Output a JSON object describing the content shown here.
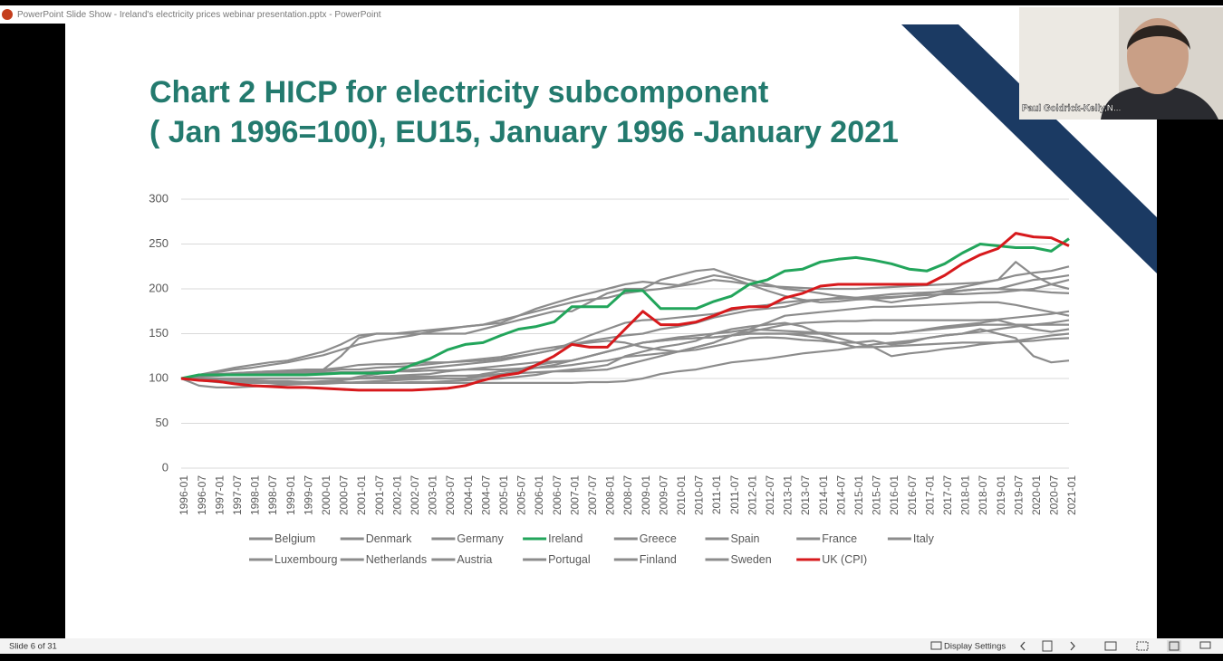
{
  "window_title": "PowerPoint Slide Show  -  Ireland's electricity prices webinar presentation.pptx - PowerPoint",
  "webcam": {
    "name": "Paul Goldrick-Kelly,N..."
  },
  "status_bar": {
    "slide": "Slide 6 of 31",
    "display_settings": "Display Settings"
  },
  "chart_data": {
    "type": "line",
    "title": "Chart 2 HICP for electricity subcomponent",
    "subtitle": "( Jan 1996=100), EU15, January 1996 -January 2021",
    "categories": [
      "1996-01",
      "1996-07",
      "1997-01",
      "1997-07",
      "1998-01",
      "1998-07",
      "1999-01",
      "1999-07",
      "2000-01",
      "2000-07",
      "2001-01",
      "2001-07",
      "2002-01",
      "2002-07",
      "2003-01",
      "2003-07",
      "2004-01",
      "2004-07",
      "2005-01",
      "2005-07",
      "2006-01",
      "2006-07",
      "2007-01",
      "2007-07",
      "2008-01",
      "2008-07",
      "2009-01",
      "2009-07",
      "2010-01",
      "2010-07",
      "2011-01",
      "2011-07",
      "2012-01",
      "2012-07",
      "2013-01",
      "2013-07",
      "2014-01",
      "2014-07",
      "2015-01",
      "2015-07",
      "2016-01",
      "2016-07",
      "2017-01",
      "2017-07",
      "2018-01",
      "2018-07",
      "2019-01",
      "2019-07",
      "2020-01",
      "2020-07",
      "2021-01"
    ],
    "ylim": [
      0,
      300
    ],
    "yticks": [
      0,
      50,
      100,
      150,
      200,
      250,
      300
    ],
    "grid": true,
    "legend": "bottom",
    "series": [
      {
        "name": "Belgium",
        "color": "#8c8c8c",
        "values": [
          100,
          103,
          105,
          106,
          107,
          108,
          108,
          109,
          110,
          112,
          115,
          116,
          116,
          117,
          118,
          118,
          119,
          120,
          122,
          125,
          128,
          132,
          140,
          148,
          155,
          162,
          165,
          166,
          168,
          170,
          172,
          176,
          180,
          182,
          185,
          187,
          188,
          190,
          190,
          192,
          194,
          195,
          196,
          197,
          198,
          200,
          200,
          199,
          198,
          196,
          195
        ]
      },
      {
        "name": "Denmark",
        "color": "#8c8c8c",
        "values": [
          100,
          104,
          108,
          112,
          115,
          118,
          120,
          125,
          130,
          138,
          148,
          150,
          150,
          152,
          154,
          156,
          158,
          160,
          162,
          170,
          175,
          180,
          185,
          188,
          190,
          195,
          198,
          200,
          203,
          206,
          210,
          208,
          205,
          203,
          202,
          201,
          200,
          200,
          200,
          201,
          202,
          203,
          204,
          205,
          206,
          207,
          210,
          215,
          218,
          220,
          225
        ]
      },
      {
        "name": "Germany",
        "color": "#8c8c8c",
        "values": [
          100,
          92,
          90,
          90,
          91,
          92,
          93,
          94,
          95,
          98,
          102,
          105,
          108,
          110,
          112,
          114,
          116,
          118,
          120,
          124,
          128,
          132,
          138,
          142,
          145,
          148,
          150,
          155,
          158,
          162,
          168,
          172,
          176,
          178,
          180,
          185,
          188,
          189,
          190,
          190,
          191,
          192,
          193,
          194,
          194,
          195,
          196,
          198,
          200,
          205,
          210
        ]
      },
      {
        "name": "Ireland",
        "color": "#22a55b",
        "values": [
          100,
          104,
          104,
          104,
          104,
          104,
          104,
          104,
          105,
          106,
          106,
          106,
          107,
          115,
          122,
          132,
          138,
          140,
          148,
          155,
          158,
          163,
          180,
          180,
          180,
          198,
          198,
          178,
          178,
          178,
          186,
          192,
          205,
          210,
          220,
          222,
          230,
          233,
          235,
          232,
          228,
          222,
          220,
          228,
          240,
          250,
          248,
          246,
          246,
          242,
          256
        ]
      },
      {
        "name": "Greece",
        "color": "#8c8c8c",
        "values": [
          100,
          102,
          103,
          104,
          105,
          105,
          105,
          106,
          106,
          107,
          107,
          108,
          108,
          108,
          109,
          109,
          110,
          110,
          110,
          111,
          112,
          113,
          115,
          118,
          120,
          124,
          126,
          128,
          130,
          135,
          140,
          148,
          152,
          156,
          160,
          162,
          163,
          164,
          164,
          165,
          165,
          165,
          165,
          165,
          165,
          165,
          166,
          168,
          170,
          172,
          175
        ]
      },
      {
        "name": "Spain",
        "color": "#8c8c8c",
        "values": [
          100,
          98,
          97,
          96,
          95,
          95,
          94,
          94,
          94,
          95,
          95,
          95,
          95,
          96,
          96,
          97,
          98,
          99,
          100,
          102,
          104,
          108,
          110,
          112,
          115,
          125,
          130,
          135,
          138,
          142,
          150,
          155,
          158,
          160,
          162,
          158,
          150,
          145,
          140,
          142,
          138,
          140,
          145,
          148,
          150,
          155,
          150,
          145,
          125,
          118,
          120
        ]
      },
      {
        "name": "France",
        "color": "#8c8c8c",
        "values": [
          100,
          100,
          99,
          98,
          98,
          97,
          97,
          96,
          96,
          96,
          95,
          95,
          95,
          95,
          95,
          95,
          95,
          95,
          95,
          95,
          95,
          95,
          95,
          96,
          96,
          97,
          100,
          105,
          108,
          110,
          114,
          118,
          120,
          122,
          125,
          128,
          130,
          132,
          135,
          138,
          140,
          142,
          145,
          148,
          150,
          152,
          155,
          158,
          160,
          162,
          165
        ]
      },
      {
        "name": "Italy",
        "color": "#8c8c8c",
        "values": [
          100,
          103,
          104,
          105,
          105,
          106,
          106,
          108,
          108,
          110,
          110,
          112,
          113,
          114,
          116,
          118,
          120,
          122,
          124,
          128,
          132,
          135,
          138,
          140,
          142,
          140,
          135,
          132,
          130,
          132,
          136,
          140,
          145,
          146,
          145,
          143,
          142,
          140,
          140,
          135,
          125,
          128,
          130,
          133,
          135,
          138,
          140,
          142,
          145,
          148,
          150
        ]
      },
      {
        "name": "Luxembourg",
        "color": "#8c8c8c",
        "values": [
          100,
          100,
          100,
          100,
          100,
          100,
          100,
          100,
          100,
          100,
          100,
          100,
          100,
          100,
          100,
          100,
          100,
          105,
          108,
          110,
          115,
          118,
          120,
          125,
          130,
          135,
          140,
          142,
          144,
          145,
          146,
          148,
          150,
          150,
          150,
          148,
          145,
          140,
          135,
          135,
          136,
          137,
          138,
          139,
          140,
          140,
          140,
          141,
          142,
          144,
          145
        ]
      },
      {
        "name": "Netherlands",
        "color": "#8c8c8c",
        "values": [
          100,
          104,
          107,
          110,
          112,
          115,
          118,
          122,
          126,
          132,
          138,
          142,
          145,
          148,
          152,
          155,
          158,
          160,
          165,
          170,
          178,
          184,
          190,
          195,
          200,
          205,
          208,
          206,
          204,
          210,
          215,
          212,
          205,
          198,
          192,
          188,
          185,
          186,
          188,
          189,
          190,
          192,
          195,
          198,
          202,
          206,
          210,
          230,
          215,
          205,
          200
        ]
      },
      {
        "name": "Austria",
        "color": "#8c8c8c",
        "values": [
          100,
          99,
          98,
          97,
          96,
          96,
          95,
          95,
          95,
          95,
          96,
          97,
          98,
          99,
          100,
          100,
          100,
          102,
          105,
          108,
          112,
          115,
          120,
          125,
          130,
          135,
          140,
          142,
          144,
          145,
          146,
          148,
          150,
          150,
          150,
          150,
          150,
          150,
          150,
          150,
          150,
          152,
          154,
          156,
          158,
          160,
          160,
          160,
          160,
          160,
          160
        ]
      },
      {
        "name": "Portugal",
        "color": "#8c8c8c",
        "values": [
          100,
          100,
          100,
          100,
          100,
          100,
          100,
          100,
          100,
          100,
          100,
          101,
          101,
          102,
          102,
          103,
          103,
          104,
          105,
          106,
          107,
          108,
          108,
          109,
          110,
          115,
          120,
          125,
          130,
          135,
          140,
          148,
          155,
          162,
          170,
          172,
          174,
          176,
          178,
          180,
          180,
          181,
          182,
          183,
          184,
          185,
          185,
          182,
          178,
          174,
          170
        ]
      },
      {
        "name": "Finland",
        "color": "#8c8c8c",
        "values": [
          100,
          98,
          96,
          95,
          95,
          95,
          95,
          96,
          97,
          98,
          100,
          102,
          103,
          104,
          105,
          108,
          110,
          112,
          114,
          116,
          118,
          119,
          120,
          125,
          130,
          135,
          140,
          143,
          146,
          148,
          150,
          152,
          155,
          154,
          153,
          152,
          151,
          150,
          150,
          150,
          150,
          152,
          155,
          158,
          160,
          162,
          165,
          160,
          155,
          152,
          155
        ]
      },
      {
        "name": "Sweden",
        "color": "#8c8c8c",
        "values": [
          100,
          102,
          104,
          106,
          107,
          108,
          109,
          110,
          110,
          125,
          145,
          150,
          150,
          150,
          150,
          150,
          150,
          155,
          160,
          165,
          170,
          175,
          175,
          185,
          195,
          200,
          200,
          210,
          215,
          220,
          222,
          215,
          210,
          205,
          200,
          198,
          195,
          192,
          190,
          188,
          185,
          188,
          190,
          195,
          198,
          200,
          200,
          205,
          210,
          212,
          215
        ]
      },
      {
        "name": "UK (CPI)",
        "color": "#d7191c",
        "values": [
          100,
          98,
          97,
          94,
          92,
          91,
          90,
          90,
          89,
          88,
          87,
          87,
          87,
          87,
          88,
          89,
          92,
          98,
          103,
          106,
          115,
          125,
          138,
          135,
          135,
          155,
          175,
          160,
          160,
          163,
          170,
          178,
          180,
          180,
          190,
          195,
          203,
          205,
          205,
          205,
          205,
          205,
          205,
          215,
          228,
          238,
          245,
          262,
          258,
          257,
          248
        ]
      }
    ]
  }
}
